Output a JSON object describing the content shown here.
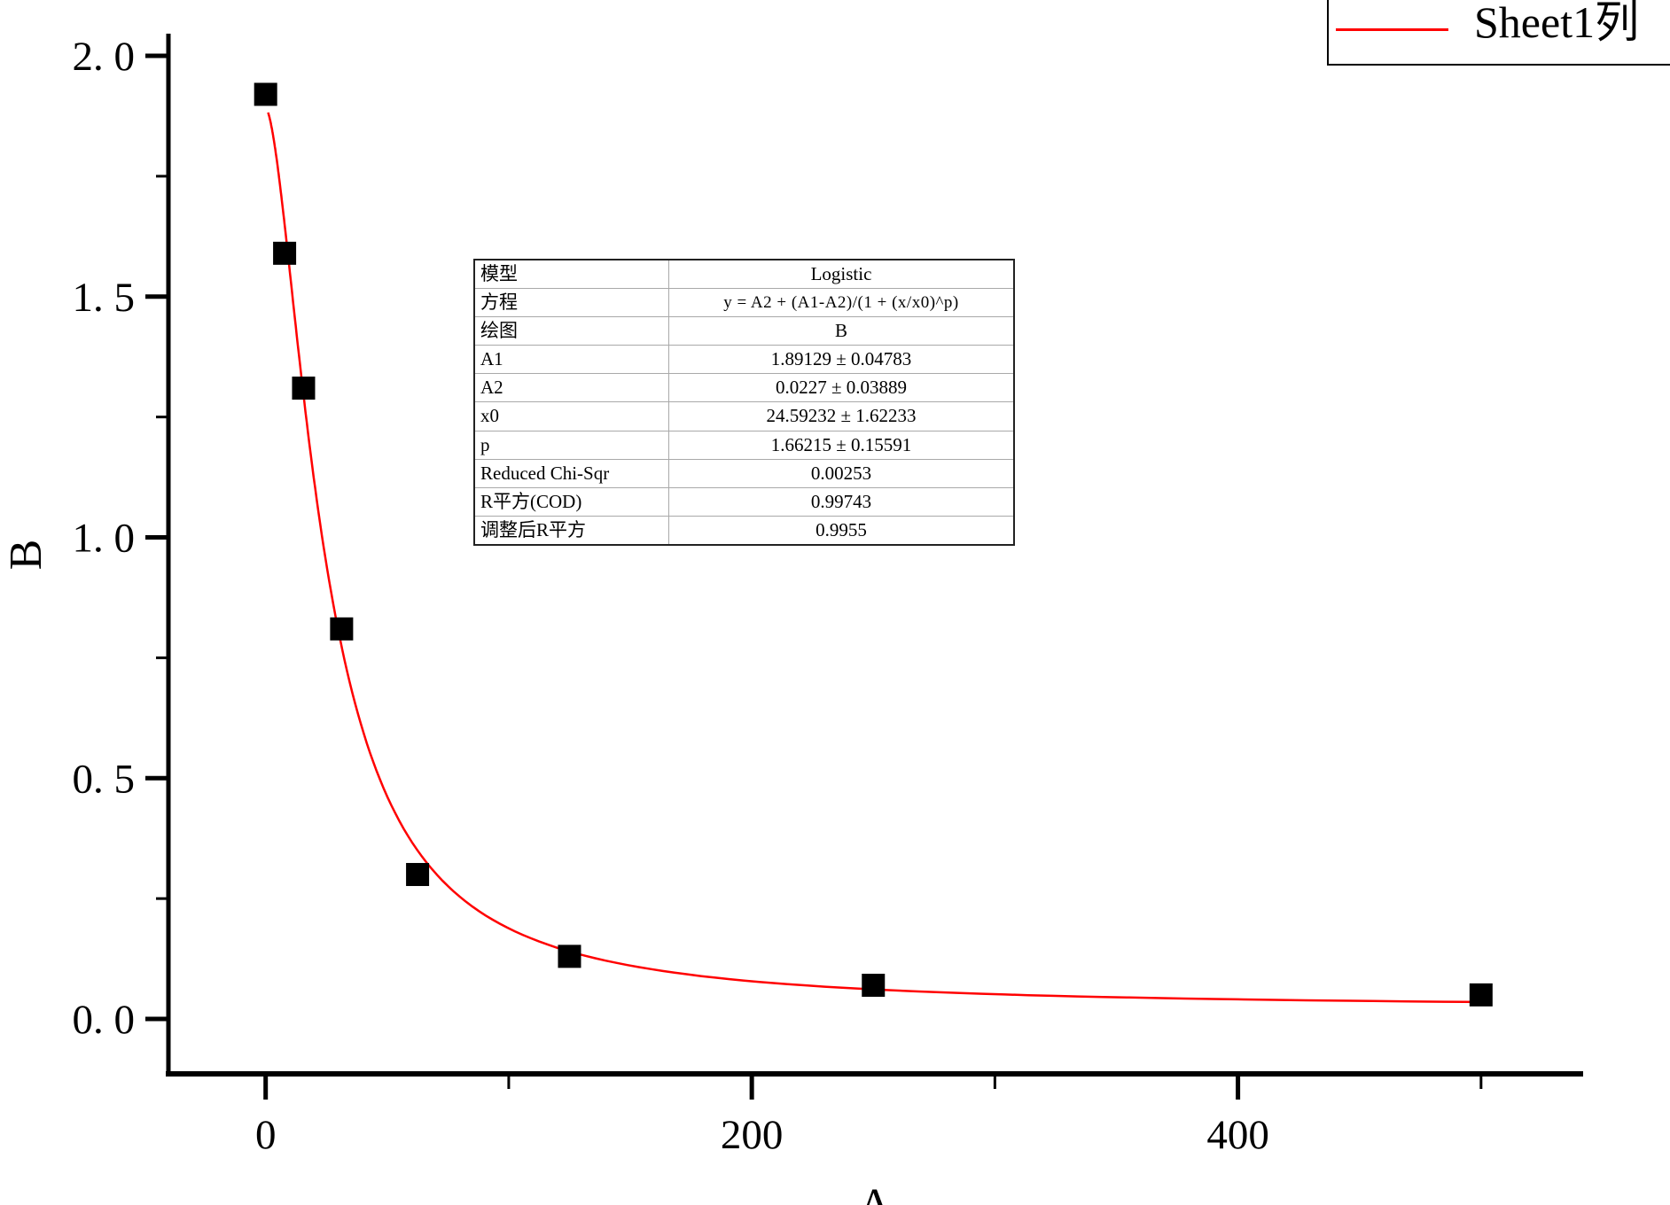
{
  "chart_data": {
    "type": "scatter",
    "title": "",
    "xlabel": "A",
    "ylabel": "B",
    "grid": false,
    "legend_position": "top-right",
    "x_axis": {
      "range": [
        -40,
        542
      ],
      "major_ticks": [
        0,
        200,
        400
      ],
      "tick_labels": [
        "0",
        "200",
        "400"
      ],
      "minor_ticks": [
        100,
        300,
        500
      ]
    },
    "y_axis": {
      "range": [
        -0.114,
        2.046
      ],
      "major_ticks": [
        0,
        0.5,
        1.0,
        1.5,
        2.0
      ],
      "tick_labels": [
        "0. 0",
        "0. 5",
        "1. 0",
        "1. 5",
        "2. 0"
      ],
      "minor_ticks": [
        0.25,
        0.75,
        1.25,
        1.75
      ]
    },
    "series": [
      {
        "name": "B",
        "type": "scatter",
        "marker": "square",
        "marker_size": 26,
        "color": "#000000",
        "x": [
          0,
          7.8,
          15.6,
          31.25,
          62.5,
          125,
          250,
          500
        ],
        "y": [
          1.92,
          1.59,
          1.31,
          0.81,
          0.3,
          0.13,
          0.07,
          0.05
        ]
      },
      {
        "name": "Sheet1列",
        "type": "line",
        "color": "#ff0000",
        "fit_model": "Logistic",
        "fit_equation": "y = A2 + (A1-A2)/(1 + (x/x0)^p)",
        "fit_params": {
          "A1": 1.89129,
          "A2": 0.0227,
          "x0": 24.59232,
          "p": 1.66215
        },
        "x_min": 1,
        "x_max": 500
      }
    ]
  },
  "legend": {
    "label": "Sheet1列",
    "line_color": "#ff0000"
  },
  "axis_titles": {
    "x": "A",
    "y": "B"
  },
  "fit_table": {
    "rows": [
      {
        "label": "模型",
        "value": "Logistic"
      },
      {
        "label": "方程",
        "value": "y = A2 + (A1-A2)/(1 + (x/x0)^p)"
      },
      {
        "label": "绘图",
        "value": "B"
      },
      {
        "label": "A1",
        "value": "1.89129 ± 0.04783"
      },
      {
        "label": "A2",
        "value": "0.0227 ± 0.03889"
      },
      {
        "label": "x0",
        "value": "24.59232 ± 1.62233"
      },
      {
        "label": "p",
        "value": "1.66215 ± 0.15591"
      },
      {
        "label": "Reduced Chi-Sqr",
        "value": "0.00253"
      },
      {
        "label": "R平方(COD)",
        "value": "0.99743"
      },
      {
        "label": "调整后R平方",
        "value": "0.9955"
      }
    ]
  }
}
